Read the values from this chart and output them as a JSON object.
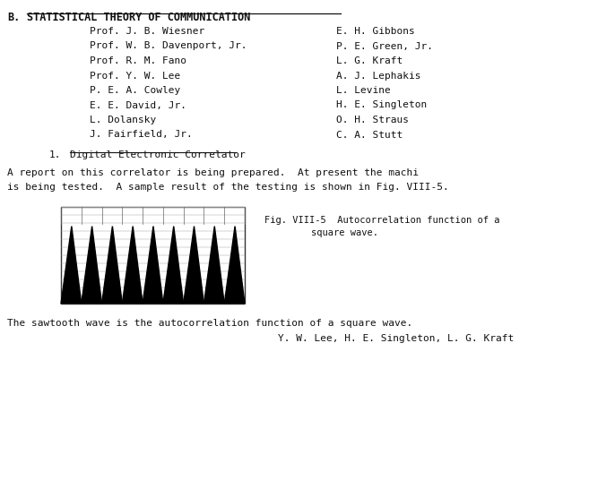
{
  "bg_color": "#ffffff",
  "title_section_b": "B.",
  "title_section_main": "STATISTICAL THEORY OF COMMUNICATION",
  "left_names": [
    "Prof. J. B. Wiesner",
    "Prof. W. B. Davenport, Jr.",
    "Prof. R. M. Fano",
    "Prof. Y. W. Lee",
    "P. E. A. Cowley",
    "E. E. David, Jr.",
    "L. Dolansky",
    "J. Fairfield, Jr."
  ],
  "right_names": [
    "E. H. Gibbons",
    "P. E. Green, Jr.",
    "L. G. Kraft",
    "A. J. Lephakis",
    "L. Levine",
    "H. E. Singleton",
    "O. H. Straus",
    "C. A. Stutt"
  ],
  "subsection_num": "1.",
  "subsection_title": "Digital Electronic Correlator",
  "body_text_1": "A report on this correlator is being prepared.  At present the machi",
  "body_text_2": "is being tested.  A sample result of the testing is shown in Fig. VIII-5.",
  "fig_label": "Fig. VIII-5",
  "fig_caption_1": "Autocorrelation function of a",
  "fig_caption_2": "square wave.",
  "bottom_text": "The sawtooth wave is the autocorrelation function of a square wave.",
  "bottom_credit": "Y. W. Lee, H. E. Singleton, L. G. Kraft",
  "chart_num_teeth": 9,
  "chart_color": "#000000",
  "title_fontsize": 8.5,
  "body_fontsize": 8.0,
  "caption_fontsize": 7.5
}
